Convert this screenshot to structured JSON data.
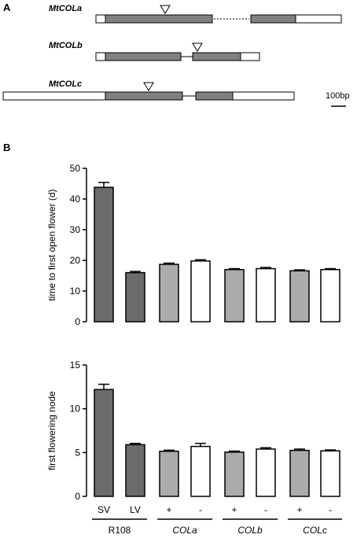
{
  "panel_a": {
    "label": "A",
    "scale_label": "100bp",
    "genes": [
      {
        "name": "MtCOLa",
        "segments": [
          {
            "type": "utr",
            "start": 0,
            "end": 12
          },
          {
            "type": "exon",
            "start": 12,
            "end": 148
          },
          {
            "type": "intron-gap",
            "start": 148,
            "end": 197
          },
          {
            "type": "exon",
            "start": 197,
            "end": 254
          },
          {
            "type": "utr",
            "start": 254,
            "end": 312
          }
        ],
        "insertion": 88
      },
      {
        "name": "MtCOLb",
        "segments": [
          {
            "type": "utr",
            "start": 0,
            "end": 12
          },
          {
            "type": "exon",
            "start": 12,
            "end": 108
          },
          {
            "type": "intron",
            "start": 108,
            "end": 123
          },
          {
            "type": "exon",
            "start": 123,
            "end": 184
          },
          {
            "type": "utr",
            "start": 184,
            "end": 208
          }
        ],
        "insertion": 129
      },
      {
        "name": "MtCOLc",
        "segments": [
          {
            "type": "utr",
            "start": 0,
            "end": 130
          },
          {
            "type": "exon",
            "start": 130,
            "end": 228
          },
          {
            "type": "intron",
            "start": 228,
            "end": 245
          },
          {
            "type": "exon",
            "start": 245,
            "end": 292
          },
          {
            "type": "utr",
            "start": 292,
            "end": 370
          }
        ],
        "insertion": 185
      }
    ]
  },
  "chart_data": [
    {
      "type": "bar",
      "panel": "B",
      "ylabel": "time to first open flower (d)",
      "ylim": [
        0,
        50
      ],
      "yticks": [
        0,
        10,
        20,
        30,
        40,
        50
      ],
      "categories": [
        "SV",
        "LV",
        "+",
        "-",
        "+",
        "-",
        "+",
        "-"
      ],
      "values": [
        43.8,
        16.0,
        18.7,
        19.8,
        17.0,
        17.3,
        16.6,
        17.0
      ],
      "errors": [
        1.6,
        0.4,
        0.4,
        0.4,
        0.3,
        0.4,
        0.3,
        0.3
      ],
      "colors": [
        "#6b6b6b",
        "#6b6b6b",
        "#ababab",
        "#ffffff",
        "#ababab",
        "#ffffff",
        "#ababab",
        "#ffffff"
      ]
    },
    {
      "type": "bar",
      "panel": "B",
      "ylabel": "first flowering node",
      "ylim": [
        0,
        15
      ],
      "yticks": [
        0,
        5,
        10,
        15
      ],
      "categories": [
        "SV",
        "LV",
        "+",
        "-",
        "+",
        "-",
        "+",
        "-"
      ],
      "values": [
        12.2,
        5.9,
        5.15,
        5.7,
        5.05,
        5.4,
        5.25,
        5.2
      ],
      "errors": [
        0.6,
        0.15,
        0.12,
        0.35,
        0.12,
        0.15,
        0.15,
        0.1
      ],
      "colors": [
        "#6b6b6b",
        "#6b6b6b",
        "#ababab",
        "#ffffff",
        "#ababab",
        "#ffffff",
        "#ababab",
        "#ffffff"
      ]
    }
  ],
  "groups": [
    {
      "label": "R108",
      "italic": false
    },
    {
      "label": "COLa",
      "italic": true
    },
    {
      "label": "COLb",
      "italic": true
    },
    {
      "label": "COLc",
      "italic": true
    }
  ],
  "panel_b_label": "B"
}
